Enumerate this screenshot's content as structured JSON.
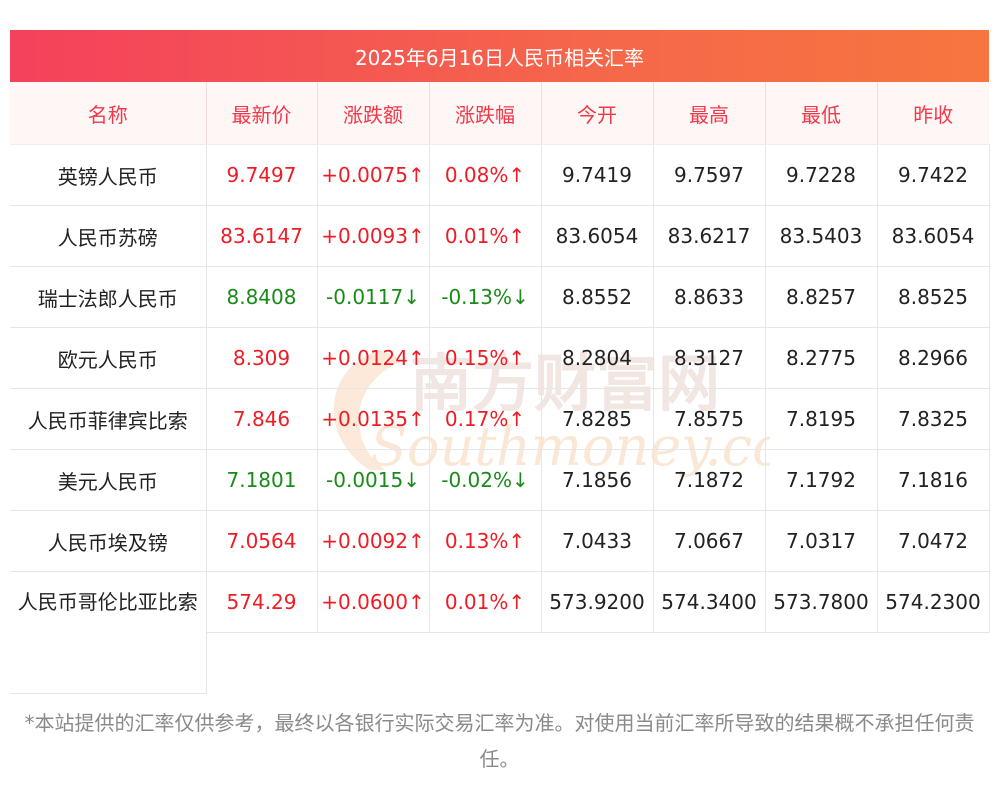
{
  "title": "2025年6月16日人民币相关汇率",
  "headers": [
    "名称",
    "最新价",
    "涨跌额",
    "涨跌幅",
    "今开",
    "最高",
    "最低",
    "昨收"
  ],
  "rows": [
    {
      "name": "英镑人民币",
      "latest": "9.7497",
      "change": "+0.0075↑",
      "pct": "0.08%↑",
      "open": "9.7419",
      "high": "9.7597",
      "low": "9.7228",
      "prev": "9.7422",
      "dir": "up"
    },
    {
      "name": "人民币苏磅",
      "latest": "83.6147",
      "change": "+0.0093↑",
      "pct": "0.01%↑",
      "open": "83.6054",
      "high": "83.6217",
      "low": "83.5403",
      "prev": "83.6054",
      "dir": "up"
    },
    {
      "name": "瑞士法郎人民币",
      "latest": "8.8408",
      "change": "-0.0117↓",
      "pct": "-0.13%↓",
      "open": "8.8552",
      "high": "8.8633",
      "low": "8.8257",
      "prev": "8.8525",
      "dir": "down"
    },
    {
      "name": "欧元人民币",
      "latest": "8.309",
      "change": "+0.0124↑",
      "pct": "0.15%↑",
      "open": "8.2804",
      "high": "8.3127",
      "low": "8.2775",
      "prev": "8.2966",
      "dir": "up"
    },
    {
      "name": "人民币菲律宾比索",
      "latest": "7.846",
      "change": "+0.0135↑",
      "pct": "0.17%↑",
      "open": "7.8285",
      "high": "7.8575",
      "low": "7.8195",
      "prev": "7.8325",
      "dir": "up"
    },
    {
      "name": "美元人民币",
      "latest": "7.1801",
      "change": "-0.0015↓",
      "pct": "-0.02%↓",
      "open": "7.1856",
      "high": "7.1872",
      "low": "7.1792",
      "prev": "7.1816",
      "dir": "down"
    },
    {
      "name": "人民币埃及镑",
      "latest": "7.0564",
      "change": "+0.0092↑",
      "pct": "0.13%↑",
      "open": "7.0433",
      "high": "7.0667",
      "low": "7.0317",
      "prev": "7.0472",
      "dir": "up"
    },
    {
      "name": "人民币哥伦比亚比索",
      "latest": "574.29",
      "change": "+0.0600↑",
      "pct": "0.01%↑",
      "open": "573.9200",
      "high": "574.3400",
      "low": "573.7800",
      "prev": "574.2300",
      "dir": "up"
    }
  ],
  "watermark": {
    "cn": "南方财富网",
    "en": "Southmoney.com"
  },
  "footer": "*本站提供的汇率仅供参考，最终以各银行实际交易汇率为准。对使用当前汇率所导致的结果概不承担任何责任。",
  "colors": {
    "up": "#ee1c25",
    "down": "#1a8a1a",
    "header_text": "#f0394b",
    "title_bar": "#f4415c"
  }
}
